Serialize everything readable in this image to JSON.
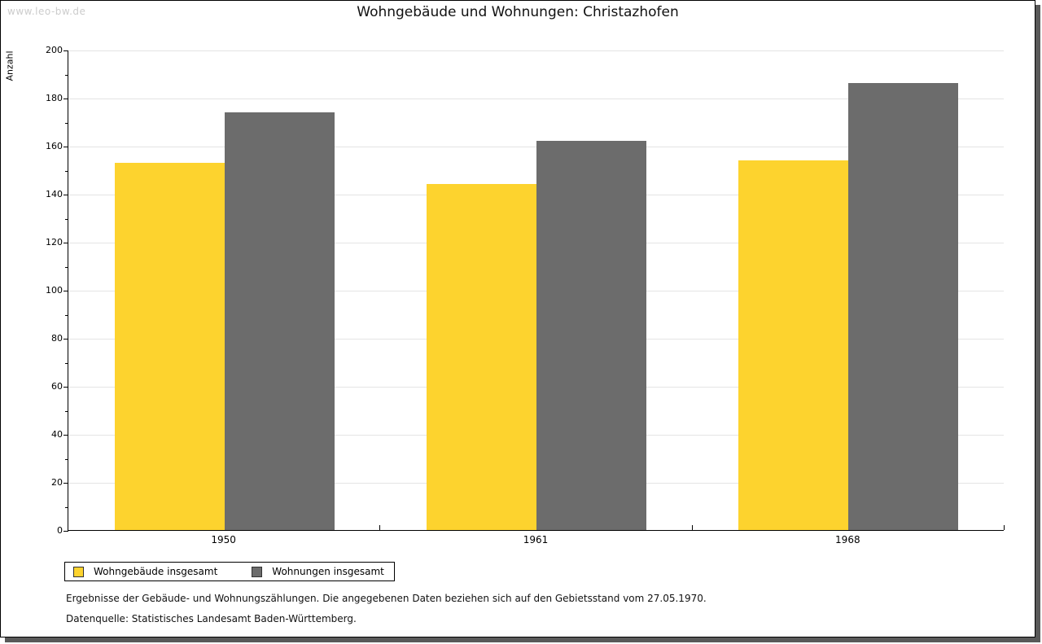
{
  "watermark": "www.leo-bw.de",
  "title": "Wohngebäude und Wohnungen: Christazhofen",
  "chart_data": {
    "type": "bar",
    "title": "Wohngebäude und Wohnungen: Christazhofen",
    "categories": [
      "1950",
      "1961",
      "1968"
    ],
    "series": [
      {
        "name": "Wohngebäude insgesamt",
        "color": "#FDD32E",
        "values": [
          153,
          144,
          154
        ]
      },
      {
        "name": "Wohnungen insgesamt",
        "color": "#6C6C6C",
        "values": [
          174,
          162,
          186
        ]
      }
    ],
    "xlabel": "",
    "ylabel": "Anzahl",
    "ylim": [
      0,
      200
    ],
    "yticks": [
      0,
      20,
      40,
      60,
      80,
      100,
      120,
      140,
      160,
      180,
      200
    ],
    "yminor_step": 10,
    "grid": true,
    "gridline_color": "#e4e4e4",
    "legend_position": "bottom-left"
  },
  "footer": {
    "line1": "Ergebnisse der Gebäude- und Wohnungszählungen. Die angegebenen Daten beziehen sich auf den Gebietsstand vom 27.05.1970.",
    "line2": "Datenquelle: Statistisches Landesamt Baden-Württemberg."
  }
}
